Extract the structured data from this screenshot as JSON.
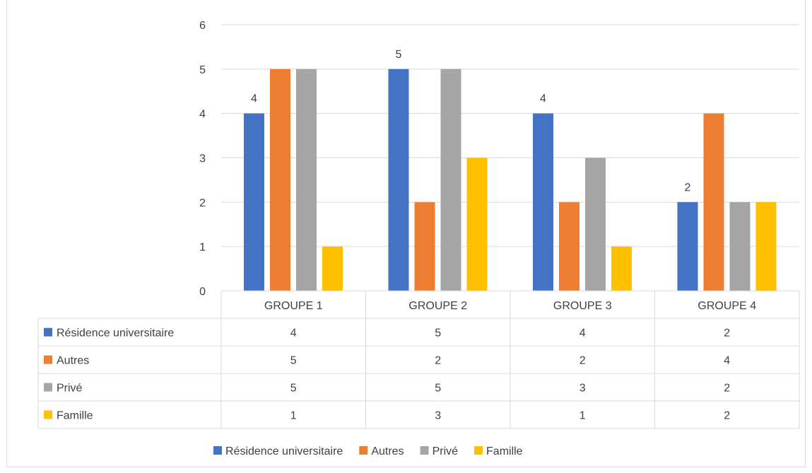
{
  "chart_data": {
    "type": "bar",
    "title": "",
    "xlabel": "",
    "ylabel": "",
    "ylim": [
      0,
      6
    ],
    "yticks": [
      "0",
      "1",
      "2",
      "3",
      "4",
      "5",
      "6"
    ],
    "grid": true,
    "legend_position": "bottom",
    "data_table": true,
    "categories": [
      "GROUPE 1",
      "GROUPE 2",
      "GROUPE 3",
      "GROUPE 4"
    ],
    "series": [
      {
        "name": "Résidence universitaire",
        "color": "#4472c4",
        "values": [
          4,
          5,
          4,
          2
        ],
        "data_labels": [
          "4",
          "5",
          "4",
          "2"
        ]
      },
      {
        "name": "Autres",
        "color": "#ed7d31",
        "values": [
          5,
          2,
          2,
          4
        ]
      },
      {
        "name": "Privé",
        "color": "#a5a5a5",
        "values": [
          5,
          5,
          3,
          2
        ]
      },
      {
        "name": "Famille",
        "color": "#ffc000",
        "values": [
          1,
          3,
          1,
          2
        ]
      }
    ]
  }
}
